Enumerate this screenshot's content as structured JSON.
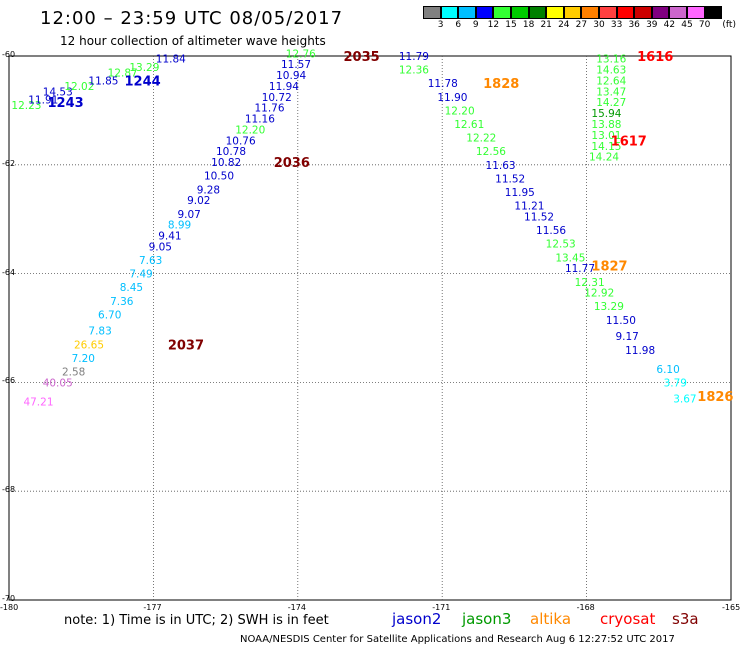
{
  "title": "12:00 – 23:59 UTC 08/05/2017",
  "subtitle": "12 hour collection of altimeter wave heights",
  "colorbar": {
    "labels": [
      "3",
      "6",
      "9",
      "12",
      "15",
      "18",
      "21",
      "24",
      "27",
      "30",
      "33",
      "36",
      "39",
      "42",
      "45",
      "70"
    ],
    "unit": "(ft)",
    "colors": [
      "#808080",
      "#00ffff",
      "#00bfff",
      "#0000ff",
      "#33ff33",
      "#00cc00",
      "#008000",
      "#ffff00",
      "#ffcc00",
      "#ff8000",
      "#ff4040",
      "#ff0000",
      "#cc0000",
      "#800080",
      "#cc66cc",
      "#ff66ff",
      "#000000"
    ]
  },
  "note": "note: 1) Time is in UTC; 2) SWH is in feet",
  "satellites": [
    {
      "name": "jason2",
      "color": "#0000cc"
    },
    {
      "name": "jason3",
      "color": "#009900"
    },
    {
      "name": "altika",
      "color": "#ff8800"
    },
    {
      "name": "cryosat",
      "color": "#ff0000"
    },
    {
      "name": "s3a",
      "color": "#800000"
    }
  ],
  "credit": "NOAA/NESDIS Center for Satellite Applications and Research   Aug  6 12:27:52 UTC 2017",
  "chart_data": {
    "type": "scatter",
    "xlim": [
      -180,
      -165
    ],
    "ylim": [
      -70,
      -60
    ],
    "grid": "dotted",
    "x_ticks": [
      "-180",
      "-177",
      "-174",
      "-171",
      "-168",
      "-165"
    ],
    "y_ticks": [
      "-60",
      "-62",
      "-64",
      "-66",
      "-68",
      "-70"
    ],
    "time_labels": [
      {
        "text": "1243",
        "lon": -179.2,
        "lat": -60.85,
        "color": "#0000cc"
      },
      {
        "text": "1244",
        "lon": -177.6,
        "lat": -60.45,
        "color": "#0000cc"
      },
      {
        "text": "2035",
        "lon": -173.05,
        "lat": -60.0,
        "color": "#800000"
      },
      {
        "text": "2036",
        "lon": -174.5,
        "lat": -61.95,
        "color": "#800000"
      },
      {
        "text": "2037",
        "lon": -176.7,
        "lat": -65.3,
        "color": "#800000"
      },
      {
        "text": "1828",
        "lon": -170.15,
        "lat": -60.5,
        "color": "#ff8800"
      },
      {
        "text": "1827",
        "lon": -167.9,
        "lat": -63.85,
        "color": "#ff8800"
      },
      {
        "text": "1826",
        "lon": -165.7,
        "lat": -66.25,
        "color": "#ff8800"
      },
      {
        "text": "1616",
        "lon": -166.95,
        "lat": -60.0,
        "color": "#ff0000"
      },
      {
        "text": "1617",
        "lon": -167.5,
        "lat": -61.55,
        "color": "#ff0000"
      }
    ],
    "series": [
      {
        "points": [
          {
            "lon": -179.95,
            "lat": -60.9,
            "swh": "12.23",
            "color": "#33ff33"
          },
          {
            "lon": -179.6,
            "lat": -60.8,
            "swh": "11.91",
            "color": "#0000cc"
          },
          {
            "lon": -179.3,
            "lat": -60.65,
            "swh": "14.53",
            "color": "#0000cc"
          },
          {
            "lon": -178.85,
            "lat": -60.55,
            "swh": "12.02",
            "color": "#33ff33"
          },
          {
            "lon": -178.35,
            "lat": -60.45,
            "swh": "11.85",
            "color": "#0000cc"
          },
          {
            "lon": -177.95,
            "lat": -60.3,
            "swh": "12.87",
            "color": "#33ff33"
          },
          {
            "lon": -177.5,
            "lat": -60.2,
            "swh": "13.29",
            "color": "#33ff33"
          },
          {
            "lon": -176.95,
            "lat": -60.05,
            "swh": "11.84",
            "color": "#0000cc"
          }
        ]
      },
      {
        "points": [
          {
            "lon": -174.25,
            "lat": -59.95,
            "swh": "12.76",
            "color": "#33ff33"
          },
          {
            "lon": -174.35,
            "lat": -60.15,
            "swh": "11.57",
            "color": "#0000cc"
          },
          {
            "lon": -174.45,
            "lat": -60.35,
            "swh": "10.94",
            "color": "#0000cc"
          },
          {
            "lon": -174.6,
            "lat": -60.55,
            "swh": "11.94",
            "color": "#0000cc"
          },
          {
            "lon": -174.75,
            "lat": -60.75,
            "swh": "10.72",
            "color": "#0000cc"
          },
          {
            "lon": -174.9,
            "lat": -60.95,
            "swh": "11.76",
            "color": "#0000cc"
          },
          {
            "lon": -175.1,
            "lat": -61.15,
            "swh": "11.16",
            "color": "#0000cc"
          },
          {
            "lon": -175.3,
            "lat": -61.35,
            "swh": "12.20",
            "color": "#33ff33"
          },
          {
            "lon": -175.5,
            "lat": -61.55,
            "swh": "10.76",
            "color": "#0000cc"
          },
          {
            "lon": -175.7,
            "lat": -61.75,
            "swh": "10.78",
            "color": "#0000cc"
          },
          {
            "lon": -175.8,
            "lat": -61.95,
            "swh": "10.82",
            "color": "#0000cc"
          },
          {
            "lon": -175.95,
            "lat": -62.2,
            "swh": "10.50",
            "color": "#0000cc"
          },
          {
            "lon": -176.1,
            "lat": -62.45,
            "swh": "9.28",
            "color": "#0000cc"
          },
          {
            "lon": -176.3,
            "lat": -62.65,
            "swh": "9.02",
            "color": "#0000cc"
          },
          {
            "lon": -176.5,
            "lat": -62.9,
            "swh": "9.07",
            "color": "#0000cc"
          },
          {
            "lon": -176.7,
            "lat": -63.1,
            "swh": "8.99",
            "color": "#00bfff"
          },
          {
            "lon": -176.9,
            "lat": -63.3,
            "swh": "9.41",
            "color": "#0000cc"
          },
          {
            "lon": -177.1,
            "lat": -63.5,
            "swh": "9.05",
            "color": "#0000cc"
          },
          {
            "lon": -177.3,
            "lat": -63.75,
            "swh": "7.63",
            "color": "#00bfff"
          },
          {
            "lon": -177.5,
            "lat": -64.0,
            "swh": "7.49",
            "color": "#00bfff"
          },
          {
            "lon": -177.7,
            "lat": -64.25,
            "swh": "8.45",
            "color": "#00bfff"
          },
          {
            "lon": -177.9,
            "lat": -64.5,
            "swh": "7.36",
            "color": "#00bfff"
          },
          {
            "lon": -178.15,
            "lat": -64.75,
            "swh": "6.70",
            "color": "#00bfff"
          },
          {
            "lon": -178.35,
            "lat": -65.05,
            "swh": "7.83",
            "color": "#00bfff"
          },
          {
            "lon": -178.65,
            "lat": -65.3,
            "swh": "26.65",
            "color": "#ffcc00"
          },
          {
            "lon": -178.7,
            "lat": -65.55,
            "swh": "7.20",
            "color": "#00bfff"
          },
          {
            "lon": -178.9,
            "lat": -65.8,
            "swh": "2.58",
            "color": "#808080"
          },
          {
            "lon": -179.3,
            "lat": -66.0,
            "swh": "40.05",
            "color": "#cc66cc"
          },
          {
            "lon": -179.7,
            "lat": -66.35,
            "swh": "47.21",
            "color": "#ff66ff"
          }
        ]
      },
      {
        "points": [
          {
            "lon": -171.9,
            "lat": -60.0,
            "swh": "11.79",
            "color": "#0000cc"
          },
          {
            "lon": -171.9,
            "lat": -60.25,
            "swh": "12.36",
            "color": "#33ff33"
          },
          {
            "lon": -171.3,
            "lat": -60.5,
            "swh": "11.78",
            "color": "#0000cc"
          },
          {
            "lon": -171.1,
            "lat": -60.75,
            "swh": "11.90",
            "color": "#0000cc"
          },
          {
            "lon": -170.95,
            "lat": -61.0,
            "swh": "12.20",
            "color": "#33ff33"
          },
          {
            "lon": -170.75,
            "lat": -61.25,
            "swh": "12.61",
            "color": "#33ff33"
          },
          {
            "lon": -170.5,
            "lat": -61.5,
            "swh": "12.22",
            "color": "#33ff33"
          },
          {
            "lon": -170.3,
            "lat": -61.75,
            "swh": "12.56",
            "color": "#33ff33"
          },
          {
            "lon": -170.1,
            "lat": -62.0,
            "swh": "11.63",
            "color": "#0000cc"
          },
          {
            "lon": -169.9,
            "lat": -62.25,
            "swh": "11.52",
            "color": "#0000cc"
          },
          {
            "lon": -169.7,
            "lat": -62.5,
            "swh": "11.95",
            "color": "#0000cc"
          },
          {
            "lon": -169.5,
            "lat": -62.75,
            "swh": "11.21",
            "color": "#0000cc"
          },
          {
            "lon": -169.3,
            "lat": -62.95,
            "swh": "11.52",
            "color": "#0000cc"
          },
          {
            "lon": -169.05,
            "lat": -63.2,
            "swh": "11.56",
            "color": "#0000cc"
          },
          {
            "lon": -168.85,
            "lat": -63.45,
            "swh": "12.53",
            "color": "#33ff33"
          },
          {
            "lon": -168.65,
            "lat": -63.7,
            "swh": "13.45",
            "color": "#33ff33"
          },
          {
            "lon": -168.45,
            "lat": -63.9,
            "swh": "11.77",
            "color": "#0000cc"
          },
          {
            "lon": -168.25,
            "lat": -64.15,
            "swh": "12.31",
            "color": "#33ff33"
          },
          {
            "lon": -168.05,
            "lat": -64.35,
            "swh": "12.92",
            "color": "#33ff33"
          },
          {
            "lon": -167.85,
            "lat": -64.6,
            "swh": "13.29",
            "color": "#33ff33"
          },
          {
            "lon": -167.6,
            "lat": -64.85,
            "swh": "11.50",
            "color": "#0000cc"
          },
          {
            "lon": -167.4,
            "lat": -65.15,
            "swh": "9.17",
            "color": "#0000cc"
          },
          {
            "lon": -167.2,
            "lat": -65.4,
            "swh": "11.98",
            "color": "#0000cc"
          },
          {
            "lon": -166.55,
            "lat": -65.75,
            "swh": "6.10",
            "color": "#00bfff"
          },
          {
            "lon": -166.4,
            "lat": -66.0,
            "swh": "3.79",
            "color": "#00ffff"
          },
          {
            "lon": -166.2,
            "lat": -66.3,
            "swh": "3.67",
            "color": "#00ffff"
          }
        ]
      },
      {
        "points": [
          {
            "lon": -167.8,
            "lat": -60.05,
            "swh": "13.16",
            "color": "#33ff33"
          },
          {
            "lon": -167.8,
            "lat": -60.25,
            "swh": "14.63",
            "color": "#33ff33"
          },
          {
            "lon": -167.8,
            "lat": -60.45,
            "swh": "12.64",
            "color": "#33ff33"
          },
          {
            "lon": -167.8,
            "lat": -60.65,
            "swh": "13.47",
            "color": "#33ff33"
          },
          {
            "lon": -167.8,
            "lat": -60.85,
            "swh": "14.27",
            "color": "#33ff33"
          },
          {
            "lon": -167.9,
            "lat": -61.05,
            "swh": "15.94",
            "color": "#009900"
          },
          {
            "lon": -167.9,
            "lat": -61.25,
            "swh": "13.88",
            "color": "#33ff33"
          },
          {
            "lon": -167.9,
            "lat": -61.45,
            "swh": "13.01",
            "color": "#33ff33"
          },
          {
            "lon": -167.9,
            "lat": -61.65,
            "swh": "14.15",
            "color": "#33ff33"
          },
          {
            "lon": -167.95,
            "lat": -61.85,
            "swh": "14.24",
            "color": "#33ff33"
          }
        ]
      }
    ]
  }
}
